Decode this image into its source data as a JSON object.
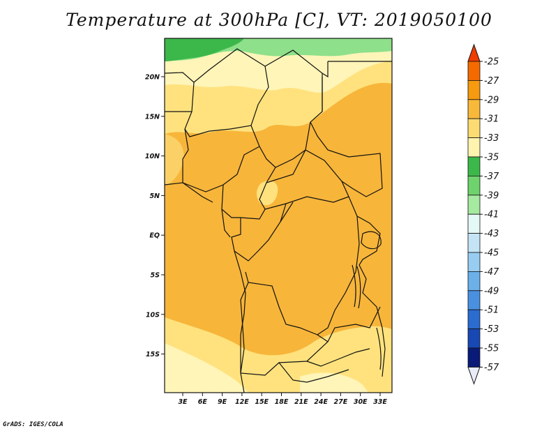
{
  "title": "Temperature at 300hPa [C], VT: 2019050100",
  "credit": "GrADS: IGES/COLA",
  "map": {
    "lon_ticks": [
      "3E",
      "6E",
      "9E",
      "12E",
      "15E",
      "18E",
      "21E",
      "24E",
      "27E",
      "30E",
      "33E"
    ],
    "lat_ticks": [
      "20N",
      "15N",
      "10N",
      "5N",
      "EQ",
      "5S",
      "10S",
      "15S"
    ],
    "zone_colors": {
      "green_dark": "#3cb84a",
      "green_light": "#8ee08a",
      "pale": "#fff5b8",
      "light": "#ffe27e",
      "mid": "#f7b53a",
      "coast": "#fbd066"
    }
  },
  "colorbar": {
    "labels": [
      "-25",
      "-27",
      "-29",
      "-31",
      "-33",
      "-35",
      "-37",
      "-39",
      "-41",
      "-43",
      "-45",
      "-47",
      "-49",
      "-51",
      "-53",
      "-55",
      "-57"
    ],
    "colors": [
      "#f03c00",
      "#f46a00",
      "#f69a10",
      "#f8b83a",
      "#fcdc72",
      "#fff3b0",
      "#3cb84a",
      "#6ed36c",
      "#a6e9a0",
      "#e4f8f6",
      "#c4e4f6",
      "#98cdf2",
      "#6cb0ea",
      "#4a90e0",
      "#2a6cd0",
      "#1848b4",
      "#0a1a78"
    ],
    "top_triangle": "#f03c00",
    "bottom_triangle": "#e8ecf8"
  }
}
